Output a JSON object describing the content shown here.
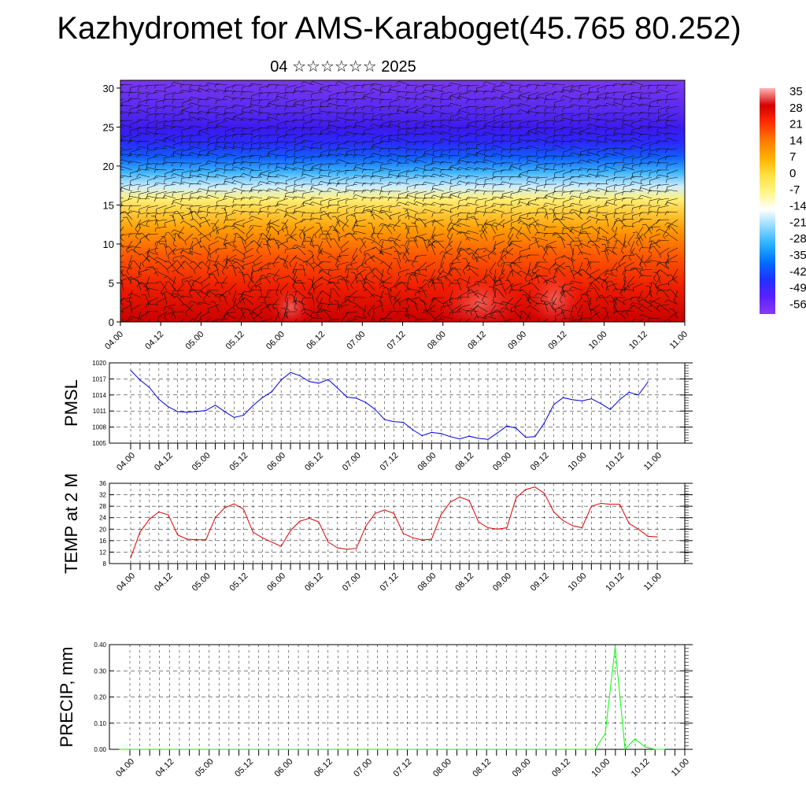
{
  "title": "Kazhydromet for AMS-Karaboget(45.765 80.252)",
  "subtitle": "04 ☆☆☆☆☆☆ 2025",
  "time_labels": [
    "04.00",
    "04.12",
    "05.00",
    "05.12",
    "06.00",
    "06.12",
    "07.00",
    "07.12",
    "08.00",
    "08.12",
    "09.00",
    "09.12",
    "10.00",
    "10.12",
    "11.00"
  ],
  "chart_data": [
    {
      "type": "heatmap",
      "title": "",
      "xlabel": "",
      "ylabel": "",
      "ylim": [
        0,
        31
      ],
      "y_ticks": [
        "0",
        "5",
        "10",
        "15",
        "20",
        "25",
        "30"
      ],
      "x_ticks": [
        "04.00",
        "04.12",
        "05.00",
        "05.12",
        "06.00",
        "06.12",
        "07.00",
        "07.12",
        "08.00",
        "08.12",
        "09.00",
        "09.12",
        "10.00",
        "10.12",
        "11.00"
      ],
      "colorbar": {
        "labels": [
          "35",
          "28",
          "21",
          "14",
          "7",
          "0",
          "-7",
          "-14",
          "-21",
          "-28",
          "-35",
          "-42",
          "-49",
          "-56"
        ],
        "colors": [
          "#ffb6b6",
          "#d40000",
          "#ff3000",
          "#ff7a00",
          "#ffb000",
          "#ffe040",
          "#fff68a",
          "#ffffff",
          "#8fd8ff",
          "#28b0ff",
          "#0070ff",
          "#2030ff",
          "#5a20ff",
          "#8a3af0"
        ]
      },
      "overlay": "wind barbs"
    },
    {
      "type": "line",
      "ylabel": "PMSL",
      "ylim": [
        1005,
        1020
      ],
      "y_ticks": [
        "1005",
        "1008",
        "1011",
        "1014",
        "1017",
        "1020"
      ],
      "x_ticks": [
        "04.00",
        "04.12",
        "05.00",
        "05.12",
        "06.00",
        "06.12",
        "07.00",
        "07.12",
        "08.00",
        "08.12",
        "09.00",
        "09.12",
        "10.00",
        "10.12",
        "11.00"
      ],
      "color": "#0000dd",
      "values": [
        1018.6,
        1016.8,
        1015.4,
        1013.2,
        1011.8,
        1010.9,
        1010.8,
        1010.9,
        1011.1,
        1012.1,
        1010.9,
        1009.8,
        1010.2,
        1012.0,
        1013.5,
        1014.6,
        1016.8,
        1018.2,
        1017.6,
        1016.5,
        1016.2,
        1016.9,
        1015.3,
        1013.6,
        1013.4,
        1012.6,
        1011.3,
        1009.4,
        1009.0,
        1008.9,
        1007.5,
        1006.4,
        1007.0,
        1006.8,
        1006.2,
        1005.8,
        1006.3,
        1005.9,
        1005.7,
        1006.9,
        1008.2,
        1007.8,
        1006.1,
        1006.2,
        1008.8,
        1012.2,
        1013.5,
        1013.1,
        1012.9,
        1013.3,
        1012.4,
        1011.3,
        1013.1,
        1014.5,
        1014.0,
        1016.4
      ]
    },
    {
      "type": "line",
      "ylabel": "TEMP at 2 M",
      "ylim": [
        8,
        36
      ],
      "y_ticks": [
        "8",
        "12",
        "16",
        "20",
        "24",
        "28",
        "32",
        "36"
      ],
      "x_ticks": [
        "04.00",
        "04.12",
        "05.00",
        "05.12",
        "06.00",
        "06.12",
        "07.00",
        "07.12",
        "08.00",
        "08.12",
        "09.00",
        "09.12",
        "10.00",
        "10.12",
        "11.00"
      ],
      "color": "#dd0000",
      "values": [
        10.0,
        19.0,
        23.5,
        26.0,
        25.0,
        18.0,
        16.5,
        16.3,
        16.3,
        24.0,
        27.5,
        28.8,
        27.0,
        19.0,
        17.0,
        15.5,
        14.0,
        19.5,
        22.8,
        23.8,
        22.5,
        15.5,
        13.5,
        13.0,
        13.3,
        21.0,
        25.5,
        26.7,
        25.5,
        18.5,
        17.0,
        16.2,
        16.5,
        25.0,
        29.5,
        31.2,
        30.0,
        22.5,
        20.5,
        20.0,
        20.5,
        31.0,
        33.8,
        34.7,
        32.5,
        26.0,
        23.0,
        21.2,
        20.5,
        28.0,
        29.0,
        28.7,
        28.7,
        22.0,
        20.0,
        17.5,
        17.3
      ]
    },
    {
      "type": "bar",
      "ylabel": "PRECIP, mm",
      "ylim": [
        0,
        0.4
      ],
      "y_ticks": [
        "0.00",
        "0.10",
        "0.20",
        "0.30",
        "0.40"
      ],
      "x_ticks": [
        "04.00",
        "04.12",
        "05.00",
        "05.12",
        "06.00",
        "06.12",
        "07.00",
        "07.12",
        "08.00",
        "08.12",
        "09.00",
        "09.12",
        "10.00",
        "10.12",
        "11.00"
      ],
      "color": "#00ff00",
      "values": [
        0,
        0,
        0,
        0,
        0,
        0,
        0,
        0,
        0,
        0,
        0,
        0,
        0,
        0,
        0,
        0,
        0,
        0,
        0,
        0,
        0,
        0,
        0,
        0,
        0,
        0,
        0,
        0,
        0,
        0,
        0,
        0,
        0,
        0,
        0,
        0,
        0,
        0,
        0,
        0,
        0,
        0,
        0,
        0,
        0,
        0,
        0,
        0,
        0,
        0.06,
        0.39,
        0,
        0.04,
        0.01,
        0,
        0
      ]
    }
  ]
}
